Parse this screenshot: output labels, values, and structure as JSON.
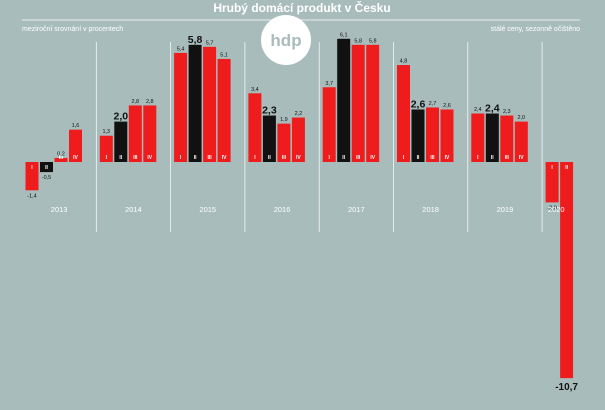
{
  "chart_data": {
    "type": "bar",
    "title": "Hrubý domácí produkt v Česku",
    "subtitle_left": "meziroční srovnání v procentech",
    "subtitle_right": "stálé ceny, sezonně očištěno",
    "logo_text": "hdp",
    "years": [
      "2013",
      "2014",
      "2015",
      "2016",
      "2017",
      "2018",
      "2019",
      "2020"
    ],
    "quarters": [
      "I",
      "II",
      "III",
      "IV"
    ],
    "values": [
      [
        -1.4,
        -0.5,
        0.2,
        1.6
      ],
      [
        1.3,
        2.0,
        2.8,
        2.8
      ],
      [
        5.4,
        5.8,
        5.7,
        5.1
      ],
      [
        3.4,
        2.3,
        1.9,
        2.2
      ],
      [
        3.7,
        6.1,
        5.8,
        5.8
      ],
      [
        4.8,
        2.6,
        2.7,
        2.6
      ],
      [
        2.4,
        2.4,
        2.3,
        2.0
      ],
      [
        -2.0,
        -10.7
      ]
    ],
    "value_labels": [
      [
        "-1,4",
        "-0,5",
        "0,2",
        "1,6"
      ],
      [
        "1,3",
        "2,0",
        "2,8",
        "2,8"
      ],
      [
        "5,4",
        "5,8",
        "5,7",
        "5,1"
      ],
      [
        "3,4",
        "2,3",
        "1,9",
        "2,2"
      ],
      [
        "3,7",
        "6,1",
        "5,8",
        "5,8"
      ],
      [
        "4,8",
        "2,6",
        "2,7",
        "2,6"
      ],
      [
        "2,4",
        "2,4",
        "2,3",
        "2,0"
      ],
      [
        "-2,0",
        "-10,7"
      ]
    ],
    "colors": {
      "red": "#ee1c1c",
      "black": "#111111",
      "background": "#a9bcbc"
    }
  }
}
